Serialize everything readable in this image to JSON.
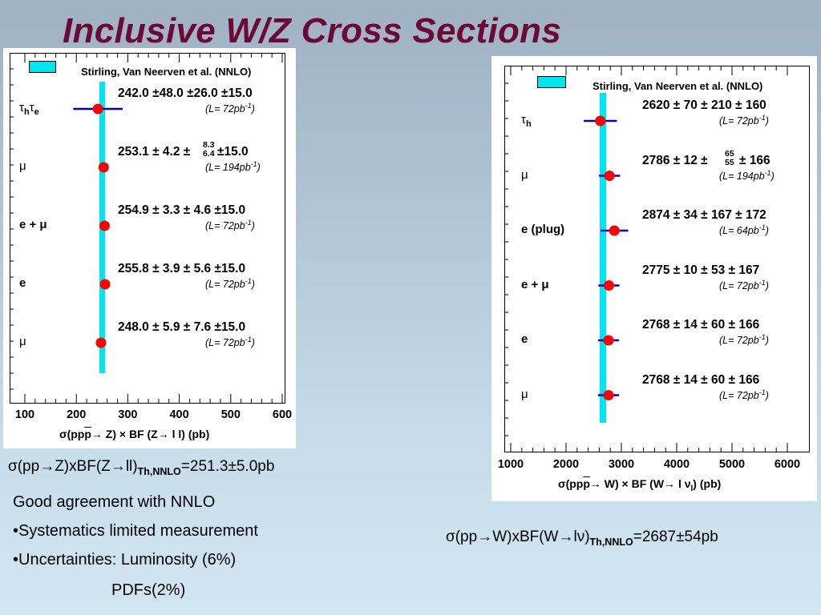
{
  "title": "Inclusive W/Z Cross Sections",
  "z_plot": {
    "legend": "Stirling, Van Neerven  et al. (NNLO)",
    "theory_value": 251.3,
    "xlim": [
      100,
      600
    ],
    "axis_ticks": [
      "100",
      "200",
      "300",
      "400",
      "500",
      "600"
    ],
    "axis_title": {
      "sigma": "σ",
      "pp": "(pp",
      "pbar": "p",
      "mid": "→ Z) × BF (Z→ l l) (pb)"
    },
    "rows": [
      {
        "channel_html": "τ<sub style=\"font-size:11px;font-weight:bold\">h</sub>τ<sub style=\"font-size:11px;font-weight:bold\">e</sub>",
        "bold_channel": false,
        "measurement": "242.0 ±48.0 ±26.0 ±15.0",
        "lumi": "(L=  72pb",
        "value": 242.0,
        "err": 48.0
      },
      {
        "channel_html": "μ",
        "bold_channel": false,
        "measurement_a": "253.1 ±  4.2 ±",
        "measurement_b": "±15.0",
        "frac_top": "8.3",
        "frac_bot": "6.4",
        "lumi": "(L= 194pb",
        "value": 253.1,
        "err": 5
      },
      {
        "channel_html": "e + μ",
        "bold_channel": true,
        "measurement": "254.9 ±  3.3 ±  4.6 ±15.0",
        "lumi": "(L=  72pb",
        "value": 254.9,
        "err": 4
      },
      {
        "channel_html": "e",
        "bold_channel": true,
        "measurement": "255.8 ±  3.9 ±  5.6 ±15.0",
        "lumi": "(L=  72pb",
        "value": 255.8,
        "err": 4.5
      },
      {
        "channel_html": "μ",
        "bold_channel": false,
        "measurement": "248.0 ±  5.9 ±  7.6 ±15.0",
        "lumi": "(L=  72pb",
        "value": 248.0,
        "err": 6
      }
    ]
  },
  "w_plot": {
    "legend": "Stirling, Van Neerven  et al. (NNLO)",
    "theory_value": 2687,
    "xlim": [
      1000,
      6000
    ],
    "axis_ticks": [
      "1000",
      "2000",
      "3000",
      "4000",
      "5000",
      "6000"
    ],
    "axis_title": {
      "sigma": "σ",
      "pp": "(pp",
      "pbar": "p",
      "mid": "→ W) × BF (W→ l ν",
      "sub": "l",
      "end": ") (pb)"
    },
    "rows": [
      {
        "channel_html": "τ<sub style=\"font-size:11px;font-weight:bold\">h</sub>",
        "bold_channel": false,
        "measurement": "2620 ±   70 ± 210 ± 160",
        "lumi": "(L=  72pb",
        "value": 2620,
        "err": 300
      },
      {
        "channel_html": "μ",
        "bold_channel": false,
        "measurement_a": "2786 ±   12 ±",
        "measurement_b": "± 166",
        "frac_top": "65",
        "frac_bot": "55",
        "lumi": "(L= 194pb",
        "value": 2786,
        "err": 190
      },
      {
        "channel_html": "e (plug)",
        "bold_channel": true,
        "measurement": "2874 ±   34 ± 167 ± 172",
        "lumi": "(L=  64pb",
        "value": 2874,
        "err": 250
      },
      {
        "channel_html": "e + μ",
        "bold_channel": true,
        "measurement": "2775 ±   10 ±   53 ± 167",
        "lumi": "(L=  72pb",
        "value": 2775,
        "err": 190
      },
      {
        "channel_html": "e",
        "bold_channel": true,
        "measurement": "2768 ±   14 ±   60 ± 166",
        "lumi": "(L=  72pb",
        "value": 2768,
        "err": 190
      },
      {
        "channel_html": "μ",
        "bold_channel": false,
        "measurement": "2768 ±   14 ±   60 ± 166",
        "lumi": "(L=  72pb",
        "value": 2768,
        "err": 190
      }
    ]
  },
  "lumi_exp": "-1",
  "lumi_close": ")",
  "z_theory": {
    "sigma": "σ",
    "main": "(pp→Z)xBF(Z→ll)",
    "sub": "Th,NNLO",
    "value": "=251.3±5.0pb"
  },
  "w_theory": {
    "sigma": "σ",
    "main": "(pp→W)xBF(W→lν)",
    "sub": "Th,NNLO",
    "value": "=2687±54pb"
  },
  "bullets": {
    "line1": "Good agreement with NNLO",
    "line2": "•Systematics limited measurement",
    "line3": "•Uncertainties: Luminosity (6%)",
    "line4": "PDFs(2%)"
  },
  "colors": {
    "title": "#6b0a34",
    "band": "#00e5ee",
    "marker": "#ff0000",
    "errbar": "#0000cc"
  }
}
